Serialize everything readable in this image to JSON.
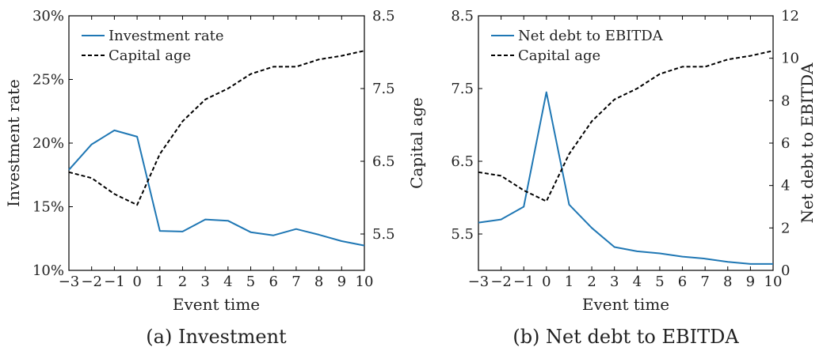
{
  "chart_data": [
    {
      "type": "line",
      "caption": "(a) Investment",
      "xlabel": "Event time",
      "ylabel": "Investment rate",
      "y2label": "Capital age",
      "x": [
        -3,
        -2,
        -1,
        0,
        1,
        2,
        3,
        4,
        5,
        6,
        7,
        8,
        9,
        10
      ],
      "xticks": [
        "−3",
        "−2",
        "−1",
        "0",
        "1",
        "2",
        "3",
        "4",
        "5",
        "6",
        "7",
        "8",
        "9",
        "10"
      ],
      "xlim": [
        -3,
        10
      ],
      "ylim": [
        10,
        30
      ],
      "yticks": [
        10,
        15,
        20,
        25,
        30
      ],
      "ytick_labels": [
        "10%",
        "15%",
        "20%",
        "25%",
        "30%"
      ],
      "y2lim": [
        5.0,
        8.5
      ],
      "y2ticks": [
        5.5,
        6.5,
        7.5,
        8.5
      ],
      "y2tick_labels": [
        "5.5",
        "6.5",
        "7.5",
        "8.5"
      ],
      "legend": "top-left",
      "series": [
        {
          "name": "Investment rate",
          "axis": "left",
          "style": "solid",
          "color": "#1f77b4",
          "values": [
            17.9,
            19.9,
            21.0,
            20.5,
            13.1,
            13.05,
            14.0,
            13.9,
            13.0,
            12.75,
            13.25,
            12.8,
            12.3,
            11.95
          ]
        },
        {
          "name": "Capital age",
          "axis": "right",
          "style": "dashed",
          "color": "#000000",
          "values": [
            6.35,
            6.27,
            6.05,
            5.9,
            6.6,
            7.05,
            7.35,
            7.5,
            7.7,
            7.8,
            7.8,
            7.9,
            7.95,
            8.02
          ]
        }
      ]
    },
    {
      "type": "line",
      "caption": "(b) Net debt to EBITDA",
      "xlabel": "Event time",
      "ylabel": "",
      "y2label": "Net debt to EBITDA",
      "x": [
        -3,
        -2,
        -1,
        0,
        1,
        2,
        3,
        4,
        5,
        6,
        7,
        8,
        9,
        10
      ],
      "xticks": [
        "−3",
        "−2",
        "−1",
        "0",
        "1",
        "2",
        "3",
        "4",
        "5",
        "6",
        "7",
        "8",
        "9",
        "10"
      ],
      "xlim": [
        -3,
        10
      ],
      "ylim": [
        5.0,
        8.5
      ],
      "yticks": [
        5.5,
        6.5,
        7.5,
        8.5
      ],
      "ytick_labels": [
        "5.5",
        "6.5",
        "7.5",
        "8.5"
      ],
      "y2lim": [
        0,
        12
      ],
      "y2ticks": [
        0,
        2,
        4,
        6,
        8,
        10,
        12
      ],
      "y2tick_labels": [
        "0",
        "2",
        "4",
        "6",
        "8",
        "10",
        "12"
      ],
      "legend": "top-left",
      "series": [
        {
          "name": "Net debt to EBITDA",
          "axis": "right",
          "style": "solid",
          "color": "#1f77b4",
          "values": [
            2.25,
            2.4,
            3.0,
            8.4,
            3.1,
            2.0,
            1.1,
            0.9,
            0.8,
            0.65,
            0.55,
            0.4,
            0.3,
            0.3
          ]
        },
        {
          "name": "Capital age",
          "axis": "left",
          "style": "dashed",
          "color": "#000000",
          "values": [
            6.35,
            6.3,
            6.1,
            5.95,
            6.6,
            7.05,
            7.35,
            7.5,
            7.7,
            7.8,
            7.8,
            7.9,
            7.95,
            8.02
          ]
        }
      ]
    }
  ]
}
